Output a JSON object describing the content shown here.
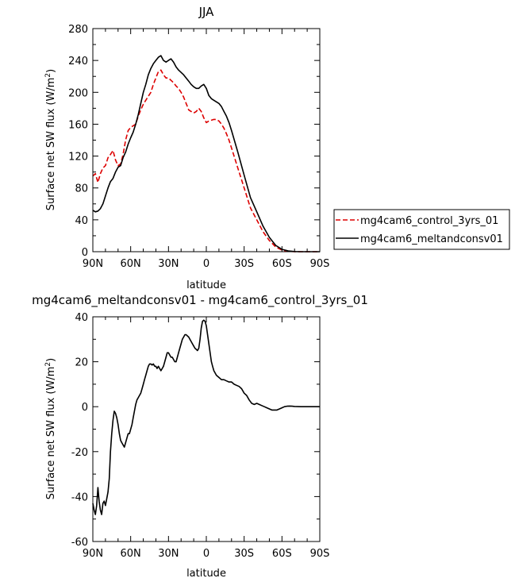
{
  "chart_data": [
    {
      "type": "line",
      "title": "JJA",
      "xlabel": "latitude",
      "ylabel_main": "Surface net SW flux (W/m",
      "ylabel_sup": "2",
      "ylabel_tail": ")",
      "xlim": [
        90,
        -90
      ],
      "ylim": [
        0,
        280
      ],
      "x_ticks": [
        {
          "value": 90,
          "label": "90N"
        },
        {
          "value": 60,
          "label": "60N"
        },
        {
          "value": 30,
          "label": "30N"
        },
        {
          "value": 0,
          "label": "0"
        },
        {
          "value": -30,
          "label": "30S"
        },
        {
          "value": -60,
          "label": "60S"
        },
        {
          "value": -90,
          "label": "90S"
        }
      ],
      "y_ticks": [
        0,
        40,
        80,
        120,
        160,
        200,
        240,
        280
      ],
      "grid": false,
      "legend_position": "right",
      "series": [
        {
          "name": "mg4cam6_control_3yrs_01",
          "color": "#dd0000",
          "dash": "dashed",
          "x": [
            90,
            88,
            86,
            84,
            82,
            80,
            78,
            76,
            74,
            72,
            70,
            68,
            66,
            64,
            62,
            60,
            58,
            56,
            54,
            52,
            50,
            48,
            46,
            44,
            42,
            40,
            38,
            36,
            34,
            32,
            30,
            28,
            26,
            24,
            22,
            20,
            18,
            16,
            14,
            12,
            10,
            8,
            6,
            4,
            2,
            0,
            -2,
            -4,
            -6,
            -8,
            -10,
            -12,
            -14,
            -16,
            -18,
            -20,
            -25,
            -30,
            -35,
            -40,
            -45,
            -50,
            -55,
            -60,
            -65,
            -70,
            -75,
            -80,
            -85,
            -90
          ],
          "y": [
            95,
            98,
            87,
            98,
            105,
            108,
            118,
            122,
            127,
            115,
            108,
            110,
            122,
            140,
            152,
            156,
            158,
            160,
            170,
            178,
            185,
            190,
            195,
            200,
            210,
            218,
            226,
            228,
            222,
            218,
            218,
            215,
            212,
            208,
            205,
            200,
            194,
            186,
            178,
            176,
            174,
            176,
            180,
            176,
            168,
            162,
            164,
            165,
            166,
            166,
            164,
            160,
            155,
            148,
            140,
            130,
            105,
            80,
            55,
            40,
            25,
            14,
            6,
            2,
            0.5,
            0,
            0,
            0,
            0,
            0
          ]
        },
        {
          "name": "mg4cam6_meltandconsv01",
          "color": "#000000",
          "dash": "solid",
          "x": [
            90,
            88,
            86,
            84,
            82,
            80,
            78,
            76,
            74,
            72,
            70,
            68,
            66,
            64,
            62,
            60,
            58,
            56,
            54,
            52,
            50,
            48,
            46,
            44,
            42,
            40,
            38,
            36,
            34,
            32,
            30,
            28,
            26,
            24,
            22,
            20,
            18,
            16,
            14,
            12,
            10,
            8,
            6,
            4,
            2,
            0,
            -2,
            -4,
            -6,
            -8,
            -10,
            -12,
            -14,
            -16,
            -18,
            -20,
            -25,
            -30,
            -35,
            -40,
            -45,
            -50,
            -55,
            -60,
            -65,
            -70,
            -75,
            -80,
            -85,
            -90
          ],
          "y": [
            52,
            50,
            51,
            54,
            60,
            70,
            80,
            88,
            92,
            100,
            106,
            108,
            118,
            125,
            135,
            143,
            150,
            160,
            172,
            186,
            200,
            210,
            222,
            230,
            236,
            240,
            244,
            246,
            240,
            238,
            240,
            242,
            238,
            232,
            228,
            225,
            222,
            218,
            214,
            210,
            207,
            205,
            205,
            208,
            210,
            205,
            196,
            192,
            190,
            188,
            186,
            182,
            176,
            170,
            162,
            152,
            125,
            96,
            68,
            50,
            32,
            18,
            8,
            3,
            1,
            0.2,
            0,
            0,
            0,
            0
          ]
        }
      ]
    },
    {
      "type": "line",
      "title": "mg4cam6_meltandconsv01 - mg4cam6_control_3yrs_01",
      "xlabel": "latitude",
      "ylabel_main": "Surface net SW flux (W/m",
      "ylabel_sup": "2",
      "ylabel_tail": ")",
      "xlim": [
        90,
        -90
      ],
      "ylim": [
        -60,
        40
      ],
      "x_ticks": [
        {
          "value": 90,
          "label": "90N"
        },
        {
          "value": 60,
          "label": "60N"
        },
        {
          "value": 30,
          "label": "30N"
        },
        {
          "value": 0,
          "label": "0"
        },
        {
          "value": -30,
          "label": "30S"
        },
        {
          "value": -60,
          "label": "60S"
        },
        {
          "value": -90,
          "label": "90S"
        }
      ],
      "y_ticks": [
        -60,
        -40,
        -20,
        0,
        20,
        40
      ],
      "grid": false,
      "series": [
        {
          "color": "#000000",
          "dash": "solid",
          "x": [
            90,
            89,
            88,
            87,
            86,
            85,
            84,
            83,
            82,
            81,
            80,
            79,
            78,
            77,
            76,
            75,
            74,
            73,
            72,
            71,
            70,
            69,
            68,
            67,
            66,
            65,
            64,
            63,
            62,
            61,
            60,
            59,
            58,
            57,
            56,
            55,
            54,
            53,
            52,
            51,
            50,
            49,
            48,
            47,
            46,
            45,
            44,
            43,
            42,
            41,
            40,
            39,
            38,
            37,
            36,
            35,
            34,
            33,
            32,
            31,
            30,
            29,
            28,
            27,
            26,
            25,
            24,
            23,
            22,
            21,
            20,
            19,
            18,
            17,
            16,
            15,
            14,
            13,
            12,
            11,
            10,
            9,
            8,
            7,
            6,
            5,
            4,
            3,
            2,
            1,
            0,
            -1,
            -2,
            -3,
            -4,
            -5,
            -6,
            -8,
            -10,
            -12,
            -14,
            -16,
            -18,
            -20,
            -22,
            -24,
            -26,
            -28,
            -30,
            -32,
            -34,
            -36,
            -38,
            -40,
            -42,
            -44,
            -46,
            -48,
            -50,
            -52,
            -54,
            -56,
            -58,
            -60,
            -62,
            -64,
            -66,
            -68,
            -70,
            -75,
            -80,
            -85,
            -90
          ],
          "y": [
            -43,
            -46,
            -48,
            -44,
            -36,
            -42,
            -46,
            -48,
            -43,
            -42,
            -44,
            -41,
            -38,
            -32,
            -20,
            -12,
            -6,
            -2,
            -3,
            -5,
            -8,
            -12,
            -15,
            -16,
            -17,
            -18,
            -16,
            -14,
            -12,
            -12,
            -10,
            -8,
            -5,
            -2,
            1,
            3,
            4,
            5,
            6,
            8,
            10,
            12,
            14,
            16,
            18,
            19,
            19,
            18.5,
            19,
            18,
            18,
            17,
            18,
            17,
            16,
            17,
            18,
            20,
            22,
            24,
            24,
            23,
            22,
            22,
            21,
            20,
            20,
            22,
            24,
            26,
            28,
            30,
            31,
            32,
            32,
            31.5,
            31,
            30,
            29,
            28,
            27,
            26,
            25.5,
            25,
            26,
            30,
            35,
            38,
            38.5,
            38,
            36,
            32,
            28,
            24,
            20,
            18,
            16,
            14,
            13,
            12,
            12,
            11.5,
            11,
            11,
            10,
            9.5,
            9,
            8,
            6,
            5,
            3,
            1.5,
            1,
            1.5,
            1,
            0.5,
            0,
            -0.5,
            -1,
            -1.5,
            -1.5,
            -1.5,
            -1,
            -0.5,
            0,
            0.2,
            0.3,
            0.2,
            0.1,
            0,
            0,
            0,
            0
          ]
        }
      ]
    }
  ]
}
